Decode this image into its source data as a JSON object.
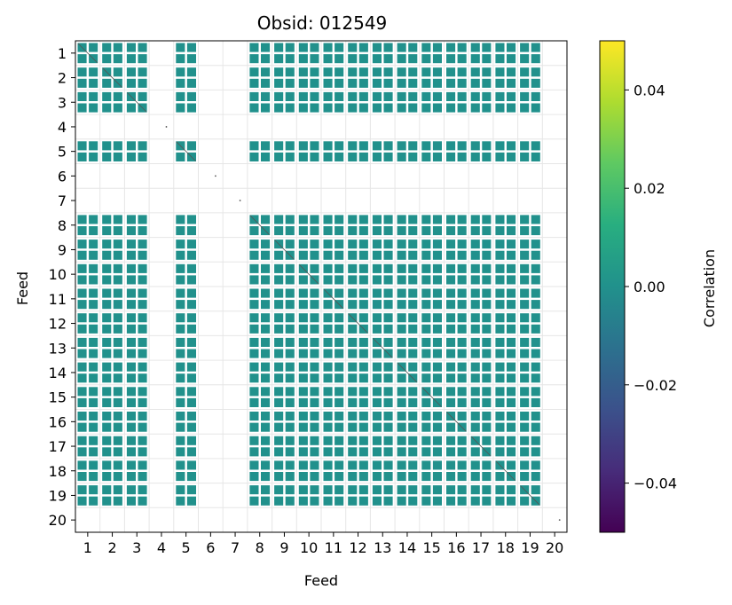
{
  "chart_data": {
    "type": "heatmap",
    "title": "Obsid: 012549",
    "xlabel": "Feed",
    "ylabel": "Feed",
    "x_ticks": [
      "1",
      "2",
      "3",
      "4",
      "5",
      "6",
      "7",
      "8",
      "9",
      "10",
      "11",
      "12",
      "13",
      "14",
      "15",
      "16",
      "17",
      "18",
      "19",
      "20"
    ],
    "y_ticks": [
      "1",
      "2",
      "3",
      "4",
      "5",
      "6",
      "7",
      "8",
      "9",
      "10",
      "11",
      "12",
      "13",
      "14",
      "15",
      "16",
      "17",
      "18",
      "19",
      "20"
    ],
    "feeds": [
      1,
      2,
      3,
      4,
      5,
      6,
      7,
      8,
      9,
      10,
      11,
      12,
      13,
      14,
      15,
      16,
      17,
      18,
      19,
      20
    ],
    "active_feeds": [
      1,
      2,
      3,
      5,
      8,
      9,
      10,
      11,
      12,
      13,
      14,
      15,
      16,
      17,
      18,
      19
    ],
    "inactive_feeds": [
      4,
      6,
      7,
      20
    ],
    "cell_value": 0.0,
    "colorbar": {
      "label": "Correlation",
      "vmin": -0.05,
      "vmax": 0.05,
      "ticks": [
        0.04,
        0.02,
        0.0,
        -0.02,
        -0.04
      ],
      "tick_labels": [
        "0.04",
        "0.02",
        "0.00",
        "−0.02",
        "−0.04"
      ],
      "colormap": "viridis"
    },
    "colors": {
      "cell": "#21918c",
      "grid": "#e6e6e6",
      "diagonal": "#555555"
    }
  }
}
